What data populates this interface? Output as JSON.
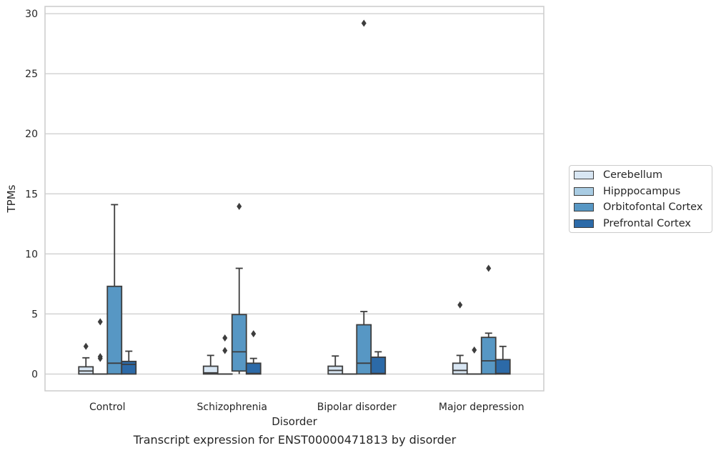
{
  "chart_data": {
    "type": "boxplot",
    "xlabel": "Disorder",
    "ylabel": "TPMs",
    "caption": "Transcript expression for ENST00000471813 by disorder",
    "ylim": [
      -1.4,
      30.6
    ],
    "yticks": [
      0,
      5,
      10,
      15,
      20,
      25,
      30
    ],
    "grid": "horizontal",
    "legend_placement": "right",
    "categories": [
      "Control",
      "Schizophrenia",
      "Bipolar disorder",
      "Major depression"
    ],
    "series": [
      {
        "name": "Cerebellum",
        "color": "#d8e6f3",
        "boxes": [
          {
            "category": "Control",
            "whisker_low": 0,
            "q1": 0,
            "median": 0.25,
            "q3": 0.6,
            "whisker_high": 1.35,
            "outliers": [
              2.3
            ]
          },
          {
            "category": "Schizophrenia",
            "whisker_low": 0,
            "q1": 0,
            "median": 0.1,
            "q3": 0.65,
            "whisker_high": 1.55,
            "outliers": []
          },
          {
            "category": "Bipolar disorder",
            "whisker_low": 0,
            "q1": 0,
            "median": 0.3,
            "q3": 0.65,
            "whisker_high": 1.5,
            "outliers": []
          },
          {
            "category": "Major depression",
            "whisker_low": 0,
            "q1": 0,
            "median": 0.3,
            "q3": 0.9,
            "whisker_high": 1.55,
            "outliers": [
              5.75
            ]
          }
        ]
      },
      {
        "name": "Hipppocampus",
        "color": "#a9cce3",
        "boxes": [
          {
            "category": "Control",
            "whisker_low": 0,
            "q1": 0,
            "median": 0,
            "q3": 0,
            "whisker_high": 0,
            "outliers": [
              1.3,
              1.45,
              4.35
            ]
          },
          {
            "category": "Schizophrenia",
            "whisker_low": 0,
            "q1": 0,
            "median": 0,
            "q3": 0,
            "whisker_high": 0,
            "outliers": [
              1.95,
              3.0
            ]
          },
          {
            "category": "Bipolar disorder",
            "whisker_low": 0,
            "q1": 0,
            "median": 0,
            "q3": 0,
            "whisker_high": 0,
            "outliers": []
          },
          {
            "category": "Major depression",
            "whisker_low": 0,
            "q1": 0,
            "median": 0,
            "q3": 0,
            "whisker_high": 0,
            "outliers": [
              2.0
            ]
          }
        ]
      },
      {
        "name": "Orbitofontal Cortex",
        "color": "#5797c4",
        "boxes": [
          {
            "category": "Control",
            "whisker_low": 0,
            "q1": 0,
            "median": 0.9,
            "q3": 7.3,
            "whisker_high": 14.1,
            "outliers": []
          },
          {
            "category": "Schizophrenia",
            "whisker_low": 0,
            "q1": 0.25,
            "median": 1.85,
            "q3": 4.95,
            "whisker_high": 8.8,
            "outliers": [
              13.95
            ]
          },
          {
            "category": "Bipolar disorder",
            "whisker_low": 0,
            "q1": 0,
            "median": 0.9,
            "q3": 4.1,
            "whisker_high": 5.2,
            "outliers": [
              29.2
            ]
          },
          {
            "category": "Major depression",
            "whisker_low": 0,
            "q1": 0,
            "median": 1.1,
            "q3": 3.05,
            "whisker_high": 3.4,
            "outliers": [
              8.8
            ]
          }
        ]
      },
      {
        "name": "Prefrontal Cortex",
        "color": "#2c6aa8",
        "boxes": [
          {
            "category": "Control",
            "whisker_low": 0,
            "q1": 0,
            "median": 0.8,
            "q3": 1.05,
            "whisker_high": 1.9,
            "outliers": []
          },
          {
            "category": "Schizophrenia",
            "whisker_low": 0,
            "q1": 0,
            "median": 0.05,
            "q3": 0.9,
            "whisker_high": 1.3,
            "outliers": [
              3.35
            ]
          },
          {
            "category": "Bipolar disorder",
            "whisker_low": 0,
            "q1": 0,
            "median": 0.05,
            "q3": 1.4,
            "whisker_high": 1.85,
            "outliers": []
          },
          {
            "category": "Major depression",
            "whisker_low": 0,
            "q1": 0,
            "median": 0.05,
            "q3": 1.2,
            "whisker_high": 2.3,
            "outliers": []
          }
        ]
      }
    ]
  }
}
